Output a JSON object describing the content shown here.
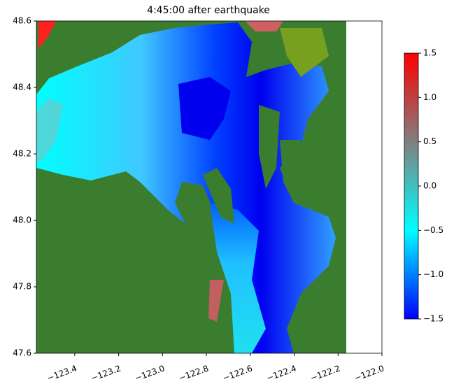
{
  "chart_data": {
    "type": "heatmap",
    "title": "4:45:00 after earthquake",
    "xlim": [
      -123.575,
      -122.0
    ],
    "xticks": [
      {
        "value": -123.4,
        "label": "−123.4"
      },
      {
        "value": -123.2,
        "label": "−123.2"
      },
      {
        "value": -123.0,
        "label": "−123.0"
      },
      {
        "value": -122.8,
        "label": "−122.8"
      },
      {
        "value": -122.6,
        "label": "−122.6"
      },
      {
        "value": -122.4,
        "label": "−122.4"
      },
      {
        "value": -122.2,
        "label": "−122.2"
      },
      {
        "value": -122.0,
        "label": "−122.0"
      }
    ],
    "ylim": [
      47.6,
      48.6
    ],
    "yticks": [
      47.6,
      47.8,
      {
        "value": 48,
        "label": "48.0"
      },
      48.2,
      48.4,
      48.6
    ],
    "colorbar": {
      "lim": [
        -1.5,
        1.5
      ],
      "ticks": [
        {
          "value": -1.5,
          "label": "−1.5"
        },
        {
          "value": -1,
          "label": "−1.0"
        },
        {
          "value": -0.5,
          "label": "−0.5"
        },
        {
          "value": 0,
          "label": "0.0"
        },
        0.5,
        {
          "value": 1,
          "label": "1.0"
        },
        1.5
      ],
      "colors": [
        "#0000ff",
        "#00ffff",
        "#808080",
        "#ff0000"
      ]
    }
  }
}
